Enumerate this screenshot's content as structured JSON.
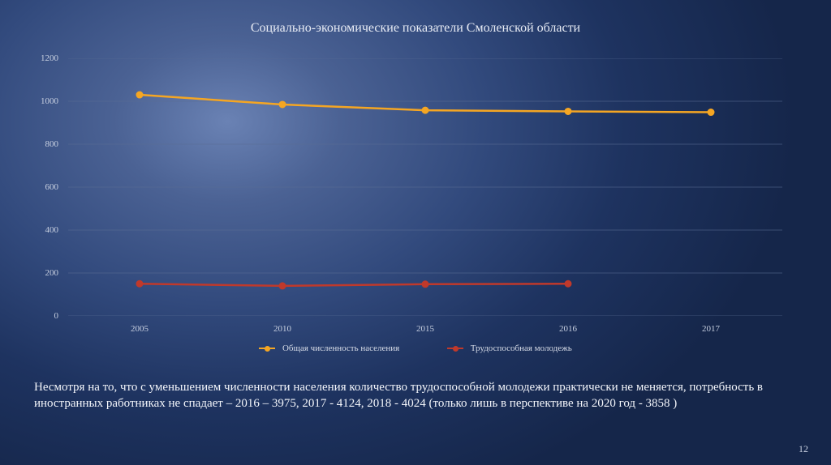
{
  "chart": {
    "type": "line",
    "title": "Социально-экономические показатели Смоленской области",
    "title_fontsize": 16,
    "background": "transparent",
    "grid_color": "#5a6d94",
    "axis_color": "#9aa6c0",
    "label_color": "#c8d0e0",
    "label_fontsize": 11,
    "xlim": [
      2005,
      2017
    ],
    "ylim": [
      0,
      1200
    ],
    "ytick_step": 200,
    "yticks": [
      0,
      200,
      400,
      600,
      800,
      1000,
      1200
    ],
    "x_categories": [
      "2005",
      "2010",
      "2015",
      "2016",
      "2017"
    ],
    "series": [
      {
        "name": "Общая численность населения",
        "color": "#f5a623",
        "line_width": 2.5,
        "marker": "circle",
        "marker_size": 6,
        "values": [
          1030,
          985,
          958,
          953,
          949
        ]
      },
      {
        "name": "Трудоспособная молодежь",
        "color": "#c0392b",
        "line_width": 2.5,
        "marker": "circle",
        "marker_size": 6,
        "values": [
          150,
          140,
          148,
          150,
          null
        ]
      }
    ],
    "legend_position": "bottom"
  },
  "caption": "Несмотря на то, что с уменьшением численности населения количество трудоспособной молодежи практически не меняется, потребность в иностранных работниках не спадает – 2016 – 3975, 2017 - 4124, 2018 - 4024 (только лишь в перспективе на 2020 год - 3858 )",
  "page_number": "12"
}
